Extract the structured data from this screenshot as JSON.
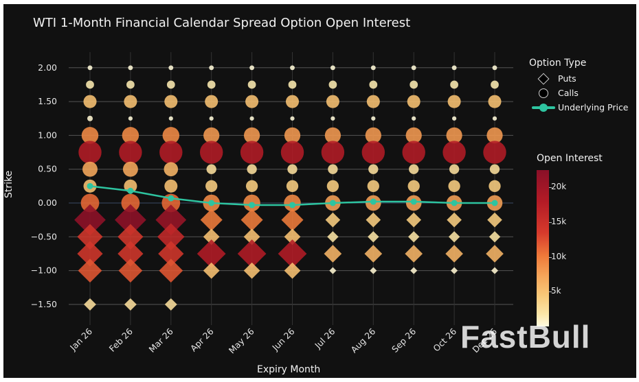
{
  "chart_data": {
    "type": "scatter",
    "title": "WTI 1-Month Financial Calendar Spread Option Open Interest",
    "xlabel": "Expiry Month",
    "ylabel": "Strike",
    "categories": [
      "Jan 26",
      "Feb 26",
      "Mar 26",
      "Apr 26",
      "May 26",
      "Jun 26",
      "Jul 26",
      "Aug 26",
      "Sep 26",
      "Oct 26",
      "Dec 26"
    ],
    "yticks": [
      "2.00",
      "1.50",
      "1.00",
      "0.50",
      "0.00",
      "−0.50",
      "−1.00",
      "−1.50"
    ],
    "ylim": [
      -1.75,
      2.1
    ],
    "legend": {
      "title": "Option Type",
      "items": [
        "Puts",
        "Calls",
        "Underlying Price"
      ]
    },
    "colorbar": {
      "title": "Open Interest",
      "ticks": [
        "20k",
        "15k",
        "10k",
        "5k"
      ],
      "range": [
        0,
        22500
      ]
    },
    "underlying_price": {
      "name": "Underlying Price",
      "color": "#2ec4a0",
      "values": [
        0.25,
        0.18,
        0.07,
        0.0,
        -0.03,
        -0.03,
        0.0,
        0.02,
        0.02,
        0.0,
        0.0
      ]
    },
    "calls": {
      "name": "Calls",
      "strikes": [
        2.0,
        1.75,
        1.5,
        1.25,
        1.0,
        0.75,
        0.5,
        0.25,
        0.0
      ],
      "open_interest": [
        [
          300,
          1500,
          5000,
          500,
          9000,
          18000,
          7000,
          5000,
          11000
        ],
        [
          300,
          1500,
          5000,
          200,
          9000,
          18000,
          7000,
          5000,
          11000
        ],
        [
          300,
          1500,
          5000,
          200,
          9000,
          18000,
          6000,
          5000,
          11000
        ],
        [
          300,
          1500,
          5000,
          200,
          8000,
          18000,
          2500,
          4000,
          9000
        ],
        [
          300,
          1500,
          5000,
          200,
          8000,
          18000,
          2500,
          4000,
          9000
        ],
        [
          300,
          1500,
          5000,
          200,
          8000,
          18000,
          2500,
          4000,
          9000
        ],
        [
          300,
          1500,
          5000,
          200,
          8000,
          18000,
          2500,
          4000,
          7500
        ],
        [
          300,
          1500,
          5000,
          200,
          8000,
          18000,
          2500,
          4000,
          7500
        ],
        [
          300,
          1500,
          5000,
          200,
          8000,
          18000,
          2500,
          4000,
          7500
        ],
        [
          300,
          1500,
          5000,
          200,
          8000,
          18000,
          2500,
          4000,
          7500
        ],
        [
          300,
          1500,
          5000,
          200,
          8000,
          18000,
          2500,
          4000,
          7500
        ]
      ]
    },
    "puts": {
      "name": "Puts",
      "strikes": [
        -0.25,
        -0.5,
        -0.75,
        -1.0,
        -1.5
      ],
      "open_interest": [
        [
          22000,
          14000,
          14000,
          12000,
          2500
        ],
        [
          22000,
          14000,
          14000,
          12000,
          2500
        ],
        [
          21000,
          16000,
          14000,
          12000,
          2500
        ],
        [
          10000,
          5000,
          18000,
          5000,
          0
        ],
        [
          10000,
          5000,
          18000,
          5000,
          0
        ],
        [
          10000,
          5000,
          18000,
          5000,
          0
        ],
        [
          4000,
          2000,
          6000,
          500,
          0
        ],
        [
          4000,
          2000,
          6000,
          500,
          0
        ],
        [
          4000,
          2000,
          6000,
          500,
          0
        ],
        [
          4000,
          2000,
          6000,
          500,
          0
        ],
        [
          4000,
          2000,
          6000,
          500,
          0
        ]
      ]
    }
  },
  "watermark": "FastBull"
}
